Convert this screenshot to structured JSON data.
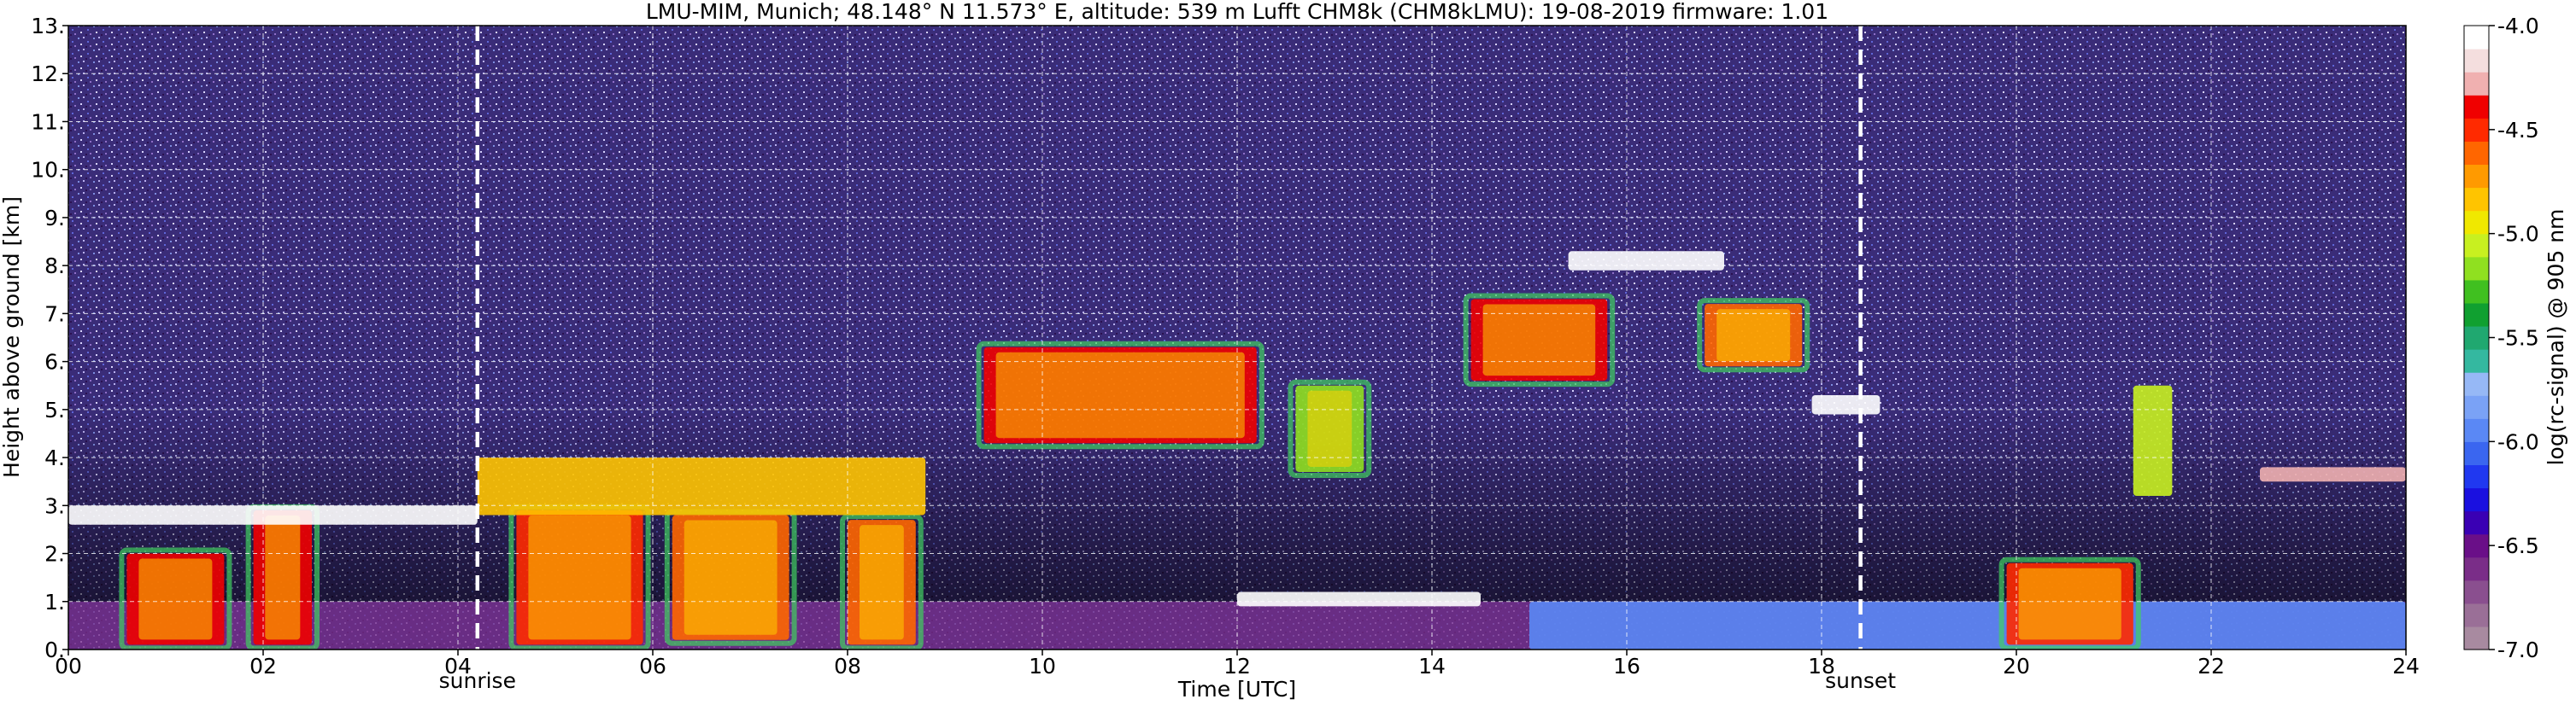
{
  "chart_data": {
    "type": "heatmap",
    "title": "LMU-MIM, Munich; 48.148° N 11.573° E, altitude: 539 m     Lufft CHM8k (CHM8kLMU): 19-08-2019     firmware: 1.01",
    "xlabel": "Time [UTC]",
    "ylabel": "Height above ground [km]",
    "xlim": [
      0,
      24
    ],
    "ylim": [
      0,
      13
    ],
    "x_ticks": [
      "00",
      "02",
      "04",
      "06",
      "08",
      "10",
      "12",
      "14",
      "16",
      "18",
      "20",
      "22",
      "24"
    ],
    "y_ticks": [
      "0.",
      "1.",
      "2.",
      "3.",
      "4.",
      "5.",
      "6.",
      "7.",
      "8.",
      "9.",
      "10.",
      "11.",
      "12.",
      "13."
    ],
    "grid": true,
    "markers": [
      {
        "label": "sunrise",
        "time": 4.2
      },
      {
        "label": "sunset",
        "time": 18.4
      }
    ],
    "colorbar": {
      "label": "log(rc-signal) @ 905 nm",
      "range": [
        -7.0,
        -4.0
      ],
      "ticks": [
        "-4.0",
        "-4.5",
        "-5.0",
        "-5.5",
        "-6.0",
        "-6.5",
        "-7.0"
      ],
      "colors": [
        "#a88aa0",
        "#9a6f97",
        "#8a4f8f",
        "#7a2d88",
        "#6a0f88",
        "#3a00b4",
        "#1a10e0",
        "#2038f0",
        "#3a66f0",
        "#5a88f5",
        "#7aa2f6",
        "#96b8f6",
        "#34b8a0",
        "#20a870",
        "#10a030",
        "#40c020",
        "#90e020",
        "#c8f020",
        "#f0e800",
        "#ffc400",
        "#ff9a00",
        "#ff6600",
        "#ff2a00",
        "#f00000",
        "#f0b0b0",
        "#f4dede",
        "#ffffff"
      ]
    },
    "background_levels": [
      {
        "name": "upper_noise",
        "ylim": [
          4.0,
          13.0
        ],
        "level": -6.4
      },
      {
        "name": "boundary_layer",
        "ylim": [
          0.0,
          1.0
        ],
        "level": -6.6
      }
    ],
    "features": [
      {
        "name": "low_cloud",
        "time": [
          0.6,
          1.6
        ],
        "height": [
          0.1,
          2.0
        ],
        "level": -4.4
      },
      {
        "name": "low_cloud",
        "time": [
          1.9,
          2.5
        ],
        "height": [
          0.1,
          2.9
        ],
        "level": -4.4
      },
      {
        "name": "low_cloud",
        "time": [
          4.6,
          5.9
        ],
        "height": [
          0.1,
          2.9
        ],
        "level": -4.5
      },
      {
        "name": "low_cloud",
        "time": [
          6.2,
          7.4
        ],
        "height": [
          0.2,
          2.8
        ],
        "level": -4.6
      },
      {
        "name": "low_cloud",
        "time": [
          8.0,
          8.7
        ],
        "height": [
          0.1,
          2.7
        ],
        "level": -4.6
      },
      {
        "name": "cloud_top",
        "time": [
          0.0,
          4.2
        ],
        "height": [
          2.6,
          3.0
        ],
        "level": -4.0
      },
      {
        "name": "cloud_top",
        "time": [
          4.2,
          8.8
        ],
        "height": [
          2.8,
          4.0
        ],
        "level": -4.8
      },
      {
        "name": "mid_cloud",
        "time": [
          9.4,
          12.2
        ],
        "height": [
          4.3,
          6.3
        ],
        "level": -4.3
      },
      {
        "name": "mid_cloud",
        "time": [
          12.6,
          13.3
        ],
        "height": [
          3.7,
          5.5
        ],
        "level": -5.2
      },
      {
        "name": "mid_cloud",
        "time": [
          14.4,
          15.8
        ],
        "height": [
          5.6,
          7.3
        ],
        "level": -4.3
      },
      {
        "name": "mid_cloud",
        "time": [
          16.8,
          17.8
        ],
        "height": [
          5.9,
          7.2
        ],
        "level": -4.6
      },
      {
        "name": "thin_layer",
        "time": [
          15.4,
          17.0
        ],
        "height": [
          7.9,
          8.3
        ],
        "level": -4.0
      },
      {
        "name": "thin_layer",
        "time": [
          17.9,
          18.6
        ],
        "height": [
          4.9,
          5.3
        ],
        "level": -4.0
      },
      {
        "name": "thin_layer",
        "time": [
          12.0,
          14.5
        ],
        "height": [
          0.9,
          1.2
        ],
        "level": -4.0
      },
      {
        "name": "surface_layer",
        "time": [
          15.0,
          24.0
        ],
        "height": [
          0.0,
          1.0
        ],
        "level": -6.0
      },
      {
        "name": "low_cloud",
        "time": [
          19.9,
          21.2
        ],
        "height": [
          0.1,
          1.8
        ],
        "level": -4.5
      },
      {
        "name": "scattered_cloud",
        "time": [
          21.2,
          21.6
        ],
        "height": [
          3.2,
          5.5
        ],
        "level": -5.0
      },
      {
        "name": "thin_layer",
        "time": [
          22.5,
          24.0
        ],
        "height": [
          3.5,
          3.8
        ],
        "level": -4.2
      }
    ]
  }
}
